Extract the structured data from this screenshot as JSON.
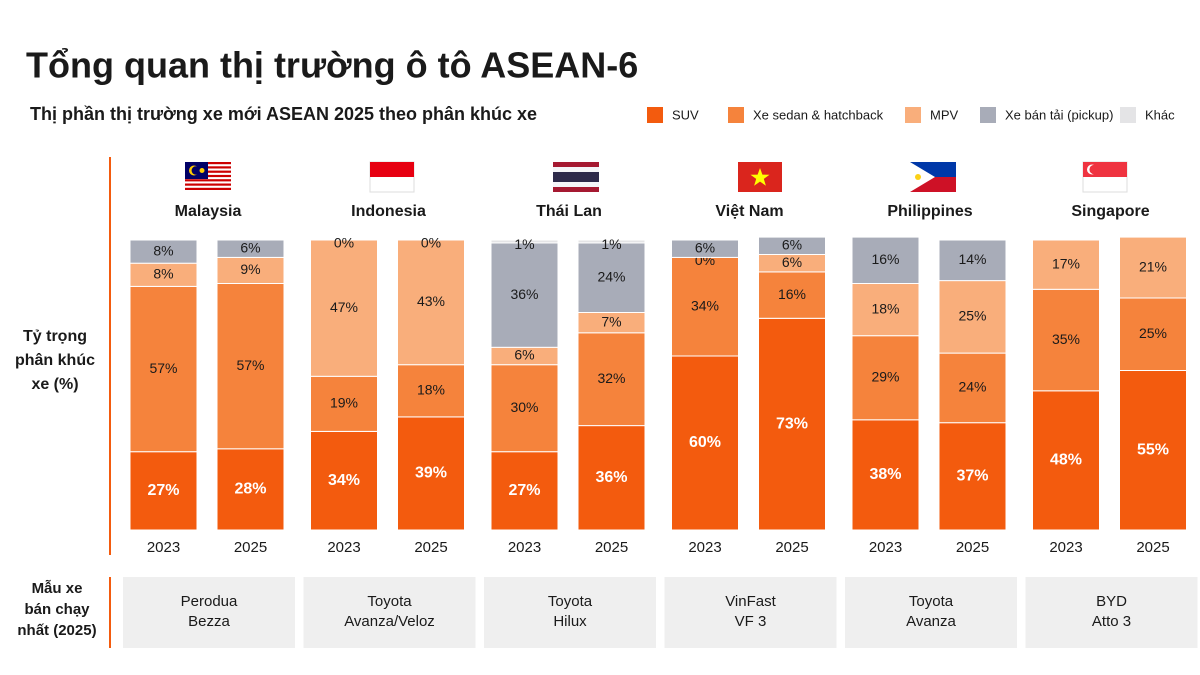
{
  "header": {
    "title": "Tổng quan thị trường ô tô ASEAN-6",
    "subtitle": "Thị phần thị trường xe mới ASEAN 2025 theo phân khúc xe"
  },
  "y_axis_label": [
    "Tỷ trọng",
    "phân khúc",
    "xe (%)"
  ],
  "best_seller_label": [
    "Mẫu xe",
    "bán chạy",
    "nhất (2025)"
  ],
  "chart_data": [
    {
      "type": "bar",
      "stacked": true,
      "title": "Malaysia",
      "categories": [
        "2023",
        "2025"
      ],
      "best_seller": [
        "Perodua",
        "Bezza"
      ],
      "series": [
        {
          "name": "SUV",
          "color": "#f35b0e",
          "values": [
            27,
            28
          ],
          "value_labels": [
            "27%",
            "28%"
          ]
        },
        {
          "name": "Xe sedan & hatchback",
          "color": "#f5833c",
          "values": [
            57,
            57
          ],
          "value_labels": [
            "57%",
            "57%"
          ]
        },
        {
          "name": "MPV",
          "color": "#f9ae7b",
          "values": [
            8,
            9
          ],
          "value_labels": [
            "8%",
            "9%"
          ]
        },
        {
          "name": "Xe bán tải (pickup)",
          "color": "#a8acb8",
          "values": [
            8,
            6
          ],
          "value_labels": [
            "8%",
            "6%"
          ]
        },
        {
          "name": "Khác",
          "color": "#e4e4e6",
          "values": [
            0,
            0
          ],
          "value_labels": [
            null,
            null
          ]
        }
      ]
    },
    {
      "type": "bar",
      "stacked": true,
      "title": "Indonesia",
      "categories": [
        "2023",
        "2025"
      ],
      "best_seller": [
        "Toyota",
        "Avanza/Veloz"
      ],
      "series": [
        {
          "name": "SUV",
          "color": "#f35b0e",
          "values": [
            34,
            39
          ],
          "value_labels": [
            "34%",
            "39%"
          ]
        },
        {
          "name": "Xe sedan & hatchback",
          "color": "#f5833c",
          "values": [
            19,
            18
          ],
          "value_labels": [
            "19%",
            "18%"
          ]
        },
        {
          "name": "MPV",
          "color": "#f9ae7b",
          "values": [
            47,
            43
          ],
          "value_labels": [
            "47%",
            "43%"
          ]
        },
        {
          "name": "Xe bán tải (pickup)",
          "color": "#a8acb8",
          "values": [
            0,
            0
          ],
          "value_labels": [
            "0%",
            "0%"
          ]
        },
        {
          "name": "Khác",
          "color": "#e4e4e6",
          "values": [
            0,
            0
          ],
          "value_labels": [
            null,
            null
          ]
        }
      ]
    },
    {
      "type": "bar",
      "stacked": true,
      "title": "Thái Lan",
      "categories": [
        "2023",
        "2025"
      ],
      "best_seller": [
        "Toyota",
        "Hilux"
      ],
      "series": [
        {
          "name": "SUV",
          "color": "#f35b0e",
          "values": [
            27,
            36
          ],
          "value_labels": [
            "27%",
            "36%"
          ]
        },
        {
          "name": "Xe sedan & hatchback",
          "color": "#f5833c",
          "values": [
            30,
            32
          ],
          "value_labels": [
            "30%",
            "32%"
          ]
        },
        {
          "name": "MPV",
          "color": "#f9ae7b",
          "values": [
            6,
            7
          ],
          "value_labels": [
            "6%",
            "7%"
          ]
        },
        {
          "name": "Xe bán tải (pickup)",
          "color": "#a8acb8",
          "values": [
            36,
            24
          ],
          "value_labels": [
            "36%",
            "24%"
          ]
        },
        {
          "name": "Khác",
          "color": "#e4e4e6",
          "values": [
            1,
            1
          ],
          "value_labels": [
            "1%",
            "1%"
          ]
        }
      ]
    },
    {
      "type": "bar",
      "stacked": true,
      "title": "Việt Nam",
      "categories": [
        "2023",
        "2025"
      ],
      "best_seller": [
        "VinFast",
        "VF 3"
      ],
      "series": [
        {
          "name": "SUV",
          "color": "#f35b0e",
          "values": [
            60,
            73
          ],
          "value_labels": [
            "60%",
            "73%"
          ]
        },
        {
          "name": "Xe sedan & hatchback",
          "color": "#f5833c",
          "values": [
            34,
            16
          ],
          "value_labels": [
            "34%",
            "16%"
          ]
        },
        {
          "name": "MPV",
          "color": "#f9ae7b",
          "values": [
            0,
            6
          ],
          "value_labels": [
            "0%",
            "6%"
          ]
        },
        {
          "name": "Xe bán tải (pickup)",
          "color": "#a8acb8",
          "values": [
            6,
            6
          ],
          "value_labels": [
            "6%",
            "6%"
          ]
        },
        {
          "name": "Khác",
          "color": "#e4e4e6",
          "values": [
            0,
            0
          ],
          "value_labels": [
            null,
            null
          ]
        }
      ]
    },
    {
      "type": "bar",
      "stacked": true,
      "title": "Philippines",
      "categories": [
        "2023",
        "2025"
      ],
      "best_seller": [
        "Toyota",
        "Avanza"
      ],
      "series": [
        {
          "name": "SUV",
          "color": "#f35b0e",
          "values": [
            38,
            37
          ],
          "value_labels": [
            "38%",
            "37%"
          ]
        },
        {
          "name": "Xe sedan & hatchback",
          "color": "#f5833c",
          "values": [
            29,
            24
          ],
          "value_labels": [
            "29%",
            "24%"
          ]
        },
        {
          "name": "MPV",
          "color": "#f9ae7b",
          "values": [
            18,
            25
          ],
          "value_labels": [
            "18%",
            "25%"
          ]
        },
        {
          "name": "Xe bán tải (pickup)",
          "color": "#a8acb8",
          "values": [
            16,
            14
          ],
          "value_labels": [
            "16%",
            "14%"
          ]
        },
        {
          "name": "Khác",
          "color": "#e4e4e6",
          "values": [
            0,
            0
          ],
          "value_labels": [
            null,
            null
          ]
        }
      ]
    },
    {
      "type": "bar",
      "stacked": true,
      "title": "Singapore",
      "categories": [
        "2023",
        "2025"
      ],
      "best_seller": [
        "BYD",
        "Atto 3"
      ],
      "series": [
        {
          "name": "SUV",
          "color": "#f35b0e",
          "values": [
            48,
            55
          ],
          "value_labels": [
            "48%",
            "55%"
          ]
        },
        {
          "name": "Xe sedan & hatchback",
          "color": "#f5833c",
          "values": [
            35,
            25
          ],
          "value_labels": [
            "35%",
            "25%"
          ]
        },
        {
          "name": "MPV",
          "color": "#f9ae7b",
          "values": [
            17,
            21
          ],
          "value_labels": [
            "17%",
            "21%"
          ]
        },
        {
          "name": "Xe bán tải (pickup)",
          "color": "#a8acb8",
          "values": [
            0,
            0
          ],
          "value_labels": [
            null,
            null
          ]
        },
        {
          "name": "Khác",
          "color": "#e4e4e6",
          "values": [
            0,
            0
          ],
          "value_labels": [
            null,
            null
          ]
        }
      ]
    }
  ]
}
